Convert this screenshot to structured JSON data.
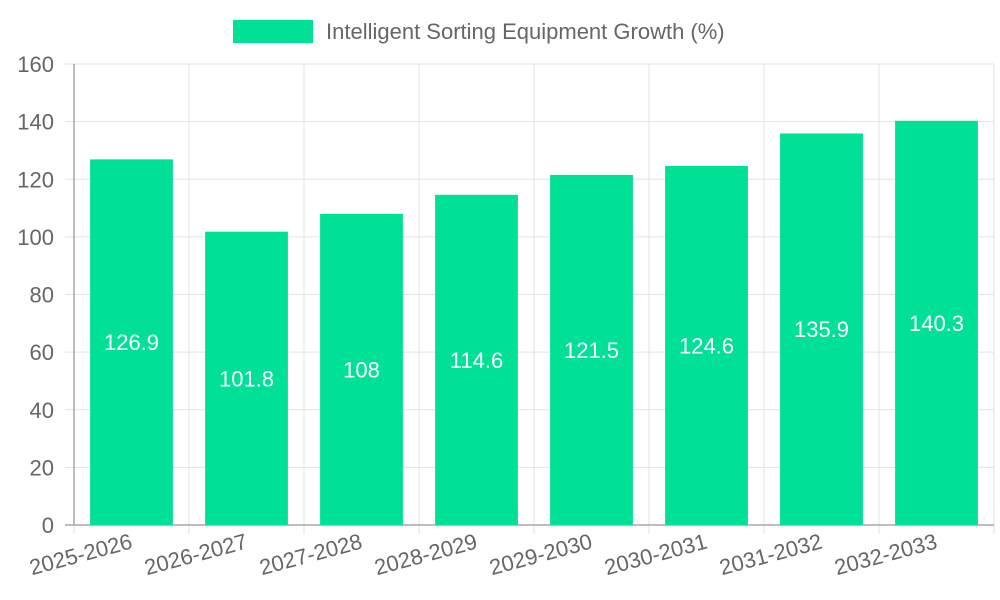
{
  "chart_data": {
    "type": "bar",
    "title": "",
    "xlabel": "",
    "ylabel": "",
    "categories": [
      "2025-2026",
      "2026-2027",
      "2027-2028",
      "2028-2029",
      "2029-2030",
      "2030-2031",
      "2031-2032",
      "2032-2033"
    ],
    "series": [
      {
        "name": "Intelligent Sorting Equipment Growth (%)",
        "values": [
          126.9,
          101.8,
          108,
          114.6,
          121.5,
          124.6,
          135.9,
          140.3
        ],
        "color": "#00e096"
      }
    ],
    "ylim": [
      0,
      160
    ],
    "yticks": [
      0,
      20,
      40,
      60,
      80,
      100,
      120,
      140,
      160
    ],
    "grid": true,
    "legend_position": "top-center",
    "data_labels": true
  }
}
